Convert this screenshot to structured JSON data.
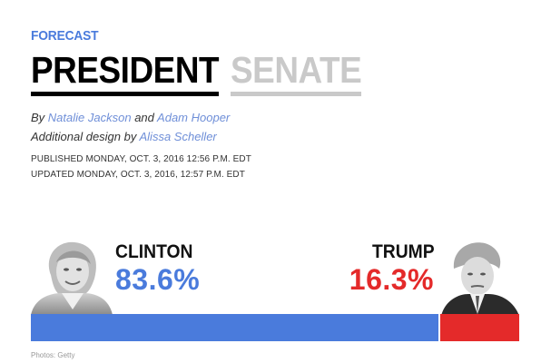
{
  "header": {
    "kicker": "FORECAST",
    "tabs": [
      {
        "label": "PRESIDENT",
        "active": true
      },
      {
        "label": "SENATE",
        "active": false
      }
    ]
  },
  "byline": {
    "prefix": "By",
    "author1": "Natalie Jackson",
    "conjunction": "and",
    "author2": "Adam Hooper",
    "design_prefix": "Additional design by",
    "designer": "Alissa Scheller"
  },
  "dates": {
    "published": "PUBLISHED MONDAY, OCT. 3, 2016 12:56 P.M. EDT",
    "updated": "UPDATED MONDAY, OCT. 3, 2016, 12:57 P.M. EDT"
  },
  "candidates": {
    "left": {
      "name": "CLINTON",
      "pct": "83.6%",
      "value": 83.6
    },
    "right": {
      "name": "TRUMP",
      "pct": "16.3%",
      "value": 16.3
    }
  },
  "credit": "Photos: Getty",
  "colors": {
    "accent": "#4a7bdc",
    "clinton": "#4a7bdc",
    "trump": "#e42a2a",
    "link": "#6f8fd8",
    "inactive_tab": "#c9c9c9"
  }
}
